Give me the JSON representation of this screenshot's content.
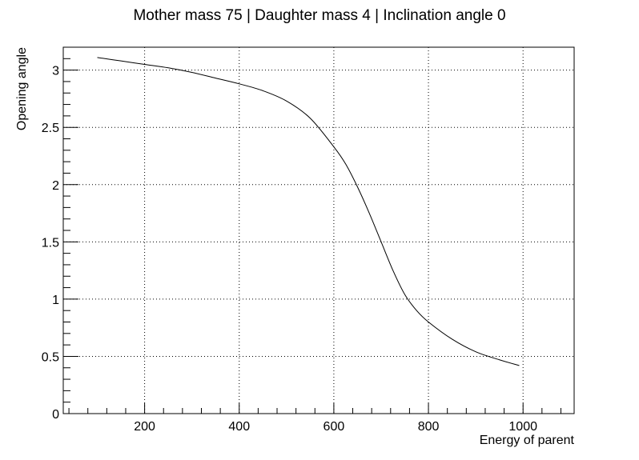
{
  "chart_data": {
    "type": "line",
    "title": "Mother mass 75 | Daughter mass 4 | Inclination angle 0",
    "xlabel": "Energy of parent",
    "ylabel": "Opening angle",
    "xlim": [
      28,
      1108
    ],
    "ylim": [
      0,
      3.2
    ],
    "grid": true,
    "x_ticks": [
      "200",
      "400",
      "600",
      "800",
      "1000"
    ],
    "y_ticks": [
      "0",
      "0.5",
      "1",
      "1.5",
      "2",
      "2.5",
      "3"
    ],
    "x_tick_values": [
      200,
      400,
      600,
      800,
      1000
    ],
    "y_tick_values": [
      0,
      0.5,
      1,
      1.5,
      2,
      2.5,
      3
    ],
    "series": [
      {
        "color": "#000000",
        "x": [
          100,
          150,
          200,
          250,
          300,
          350,
          400,
          450,
          500,
          550,
          600,
          625,
          650,
          675,
          700,
          725,
          750,
          775,
          800,
          850,
          900,
          950,
          992
        ],
        "y": [
          3.11,
          3.08,
          3.05,
          3.02,
          2.98,
          2.93,
          2.88,
          2.82,
          2.73,
          2.58,
          2.33,
          2.18,
          1.98,
          1.75,
          1.5,
          1.25,
          1.04,
          0.9,
          0.8,
          0.65,
          0.54,
          0.47,
          0.42
        ]
      }
    ]
  }
}
